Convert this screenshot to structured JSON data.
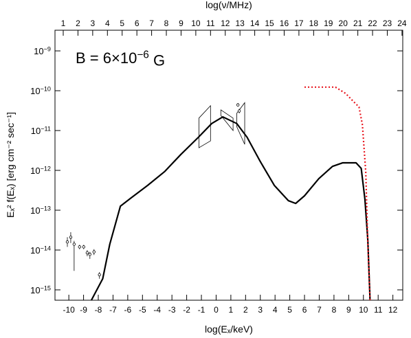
{
  "chart_data": {
    "type": "line",
    "annotation": "B = 6×10−6 G",
    "x_label": "log(Eₓ/keV)",
    "x2_label": "log(ν/MHz)",
    "y_label": "Eₓ² f(Eₓ) [erg cm⁻² sec⁻¹]",
    "xlim": [
      -10.94,
      12.67
    ],
    "xticks": [
      -10,
      -9,
      -8,
      -7,
      -6,
      -5,
      -4,
      -3,
      -2,
      -1,
      0,
      1,
      2,
      3,
      4,
      5,
      6,
      7,
      8,
      9,
      10,
      11,
      12
    ],
    "x2lim": [
      0.44,
      24.05
    ],
    "x2ticks": [
      1,
      2,
      3,
      4,
      5,
      6,
      7,
      8,
      9,
      10,
      11,
      12,
      13,
      14,
      15,
      16,
      17,
      18,
      19,
      20,
      21,
      22,
      23,
      24
    ],
    "yscale": "log",
    "ylim": [
      5.5e-16,
      3.3e-09
    ],
    "yticks": [
      {
        "value": 1e-09,
        "label": "10−9"
      },
      {
        "value": 1e-10,
        "label": "10−10"
      },
      {
        "value": 1e-11,
        "label": "10−11"
      },
      {
        "value": 1e-12,
        "label": "10−12"
      },
      {
        "value": 1e-13,
        "label": "10−13"
      },
      {
        "value": 1e-14,
        "label": "10−14"
      },
      {
        "value": 1e-15,
        "label": "10−15"
      }
    ],
    "series": [
      {
        "color": "#000000",
        "style": "solid",
        "x": [
          -8.47,
          -7.7,
          -7.22,
          -6.5,
          -5.8,
          -4.65,
          -3.5,
          -2.4,
          -1.2,
          -0.3,
          0.45,
          1.4,
          2.1,
          3.0,
          3.95,
          4.9,
          5.4,
          6.0,
          6.97,
          7.9,
          8.6,
          9.5,
          9.85,
          10.1,
          10.3,
          10.45
        ],
        "values": [
          5.5e-16,
          1.9e-15,
          1.4e-14,
          1.26e-13,
          2e-13,
          4.2e-13,
          9.3e-13,
          2.5e-12,
          6.8e-12,
          1.5e-11,
          2.2e-11,
          1.5e-11,
          6.8e-12,
          1.66e-12,
          4.2e-13,
          1.74e-13,
          1.48e-13,
          2.3e-13,
          6.2e-13,
          1.26e-12,
          1.55e-12,
          1.55e-12,
          1.12e-12,
          1.9e-13,
          1.74e-14,
          5.5e-16
        ]
      },
      {
        "color": "#e8141c",
        "style": "dotted",
        "x": [
          6.0,
          8.1,
          8.8,
          9.25,
          9.7,
          9.93,
          10.16,
          10.3,
          10.45
        ],
        "values": [
          1.23e-10,
          1.23e-10,
          8.5e-11,
          5.7e-11,
          3.9e-11,
          1.4e-11,
          8.9e-13,
          1.4e-14,
          5.5e-16
        ]
      }
    ],
    "points": {
      "color": "#000000",
      "x": [
        -10.1,
        -9.87,
        -9.64,
        -9.27,
        -8.99,
        -8.75,
        -8.57,
        -8.29,
        -7.92,
        1.48,
        1.57
      ],
      "values": [
        1.6e-14,
        2.1e-14,
        1.4e-14,
        1.2e-14,
        1.2e-14,
        8.5e-15,
        7.8e-15,
        9e-15,
        2.4e-15,
        4.4e-11,
        3.1e-11
      ],
      "lower": [
        1.2e-14,
        1.5e-14,
        3e-15,
        1.05e-14,
        1.05e-14,
        7e-15,
        6e-15,
        7.5e-15,
        1.9e-15,
        4e-11,
        2.7e-11
      ],
      "upper": [
        2.1e-14,
        2.8e-14,
        1.7e-14,
        1.35e-14,
        1.35e-14,
        1e-14,
        9e-15,
        1.05e-14,
        2.8e-15,
        4.9e-11,
        3.5e-11
      ]
    },
    "bowties": [
      {
        "x": [
          -1.17,
          -0.38
        ],
        "left": [
          3.7e-12,
          2.05e-11
        ],
        "right": [
          5.5e-12,
          4.2e-11
        ]
      },
      {
        "x": [
          0.32,
          1.15
        ],
        "left": [
          2.4e-11,
          3.3e-11
        ],
        "right": [
          1e-11,
          2.05e-11
        ]
      },
      {
        "x": [
          1.4,
          1.94
        ],
        "left": [
          1.25e-11,
          2.7e-11
        ],
        "right": [
          4.5e-12,
          5e-11
        ]
      }
    ]
  }
}
